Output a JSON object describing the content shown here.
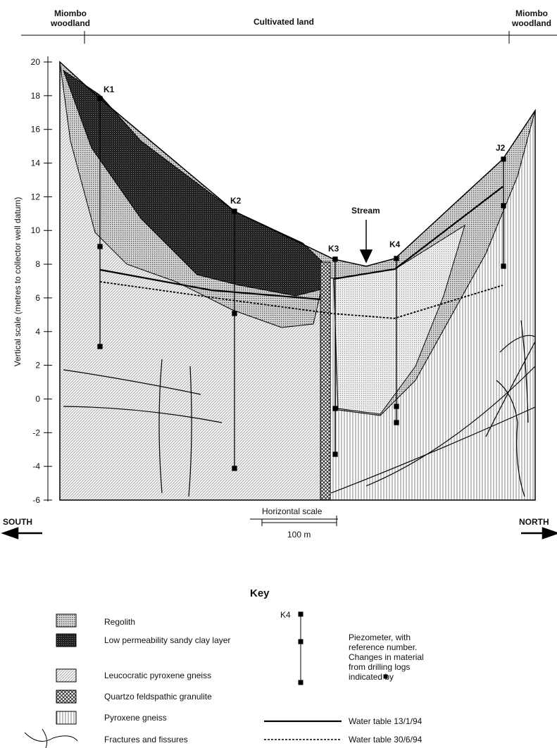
{
  "top_labels": {
    "left": "Miombo woodland",
    "center": "Cultivated land",
    "right": "Miombo woodland"
  },
  "axis": {
    "label": "Vertical scale (metres to collector well datum)",
    "ticks": [
      20,
      18,
      16,
      14,
      12,
      10,
      8,
      6,
      4,
      2,
      0,
      -2,
      -4,
      -6
    ]
  },
  "piezometers": [
    "K1",
    "K2",
    "K3",
    "K4",
    "J2"
  ],
  "stream": "Stream",
  "directions": {
    "south": "SOUTH",
    "north": "NORTH"
  },
  "scale": {
    "title": "Horizontal scale",
    "length": "100 m"
  },
  "key": {
    "title": "Key",
    "items": [
      "Regolith",
      "Low permeability sandy clay layer",
      "Leucocratic pyroxene gneiss",
      "Quartzo feldspathic granulite",
      "Pyroxene gneiss",
      "Fractures and fissures"
    ],
    "piezometer": {
      "label": "K4",
      "text": "Piezometer, with reference number. Changes in material from drilling logs indicated by"
    },
    "lines": [
      "Water table 13/1/94",
      "Water table 30/6/94"
    ]
  }
}
